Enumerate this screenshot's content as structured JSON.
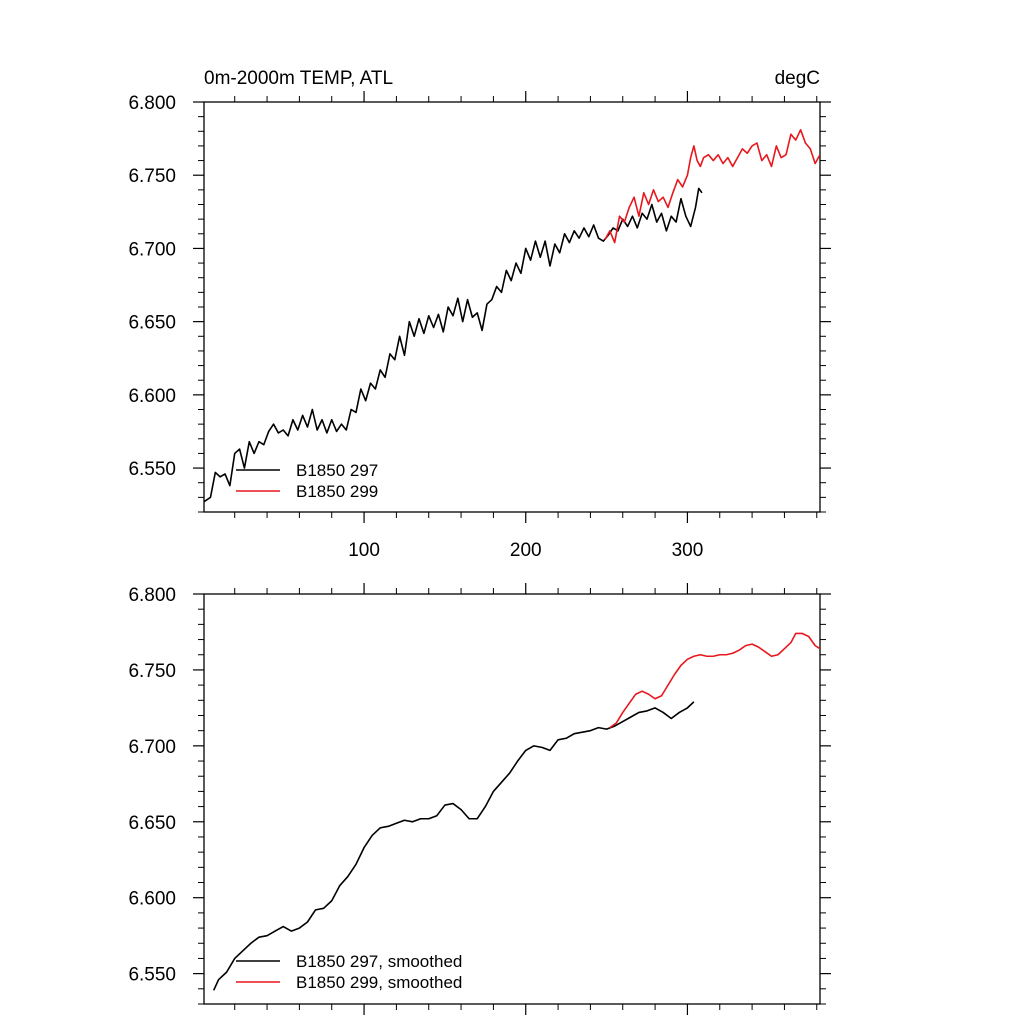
{
  "figure": {
    "top_left_title": "0m-2000m TEMP, ATL",
    "top_right_title": "degC"
  },
  "chart_data": [
    {
      "type": "line",
      "xlim": [
        1,
        382
      ],
      "ylim": [
        6.52,
        6.8
      ],
      "x_ticks": [
        100,
        200,
        300
      ],
      "x_tick_labels": [
        "100",
        "200",
        "300"
      ],
      "y_ticks": [
        6.55,
        6.6,
        6.65,
        6.7,
        6.75,
        6.8
      ],
      "y_tick_labels": [
        "6.550",
        "6.600",
        "6.650",
        "6.700",
        "6.750",
        "6.800"
      ],
      "grid": false,
      "legend_placement": "bottom-left",
      "series": [
        {
          "name": "B1850 297",
          "color": "#000000",
          "points": [
            [
              1,
              6.527
            ],
            [
              5,
              6.53
            ],
            [
              8,
              6.547
            ],
            [
              11,
              6.544
            ],
            [
              14,
              6.546
            ],
            [
              17,
              6.538
            ],
            [
              20,
              6.56
            ],
            [
              23,
              6.563
            ],
            [
              26,
              6.55
            ],
            [
              29,
              6.568
            ],
            [
              32,
              6.56
            ],
            [
              35,
              6.568
            ],
            [
              38,
              6.566
            ],
            [
              41,
              6.575
            ],
            [
              44,
              6.58
            ],
            [
              47,
              6.574
            ],
            [
              50,
              6.576
            ],
            [
              53,
              6.572
            ],
            [
              56,
              6.583
            ],
            [
              59,
              6.576
            ],
            [
              62,
              6.586
            ],
            [
              65,
              6.578
            ],
            [
              68,
              6.59
            ],
            [
              71,
              6.576
            ],
            [
              74,
              6.583
            ],
            [
              77,
              6.574
            ],
            [
              80,
              6.583
            ],
            [
              83,
              6.575
            ],
            [
              86,
              6.58
            ],
            [
              89,
              6.576
            ],
            [
              92,
              6.59
            ],
            [
              95,
              6.588
            ],
            [
              98,
              6.604
            ],
            [
              101,
              6.596
            ],
            [
              104,
              6.608
            ],
            [
              107,
              6.604
            ],
            [
              110,
              6.617
            ],
            [
              113,
              6.612
            ],
            [
              116,
              6.628
            ],
            [
              119,
              6.624
            ],
            [
              122,
              6.64
            ],
            [
              125,
              6.627
            ],
            [
              128,
              6.65
            ],
            [
              131,
              6.64
            ],
            [
              134,
              6.652
            ],
            [
              137,
              6.642
            ],
            [
              140,
              6.654
            ],
            [
              143,
              6.646
            ],
            [
              146,
              6.655
            ],
            [
              149,
              6.643
            ],
            [
              152,
              6.66
            ],
            [
              155,
              6.654
            ],
            [
              158,
              6.666
            ],
            [
              161,
              6.65
            ],
            [
              164,
              6.665
            ],
            [
              167,
              6.653
            ],
            [
              170,
              6.656
            ],
            [
              173,
              6.644
            ],
            [
              176,
              6.662
            ],
            [
              179,
              6.665
            ],
            [
              182,
              6.674
            ],
            [
              185,
              6.67
            ],
            [
              188,
              6.685
            ],
            [
              191,
              6.678
            ],
            [
              194,
              6.69
            ],
            [
              197,
              6.683
            ],
            [
              200,
              6.7
            ],
            [
              203,
              6.692
            ],
            [
              206,
              6.705
            ],
            [
              209,
              6.694
            ],
            [
              212,
              6.705
            ],
            [
              215,
              6.688
            ],
            [
              218,
              6.703
            ],
            [
              221,
              6.697
            ],
            [
              224,
              6.71
            ],
            [
              227,
              6.704
            ],
            [
              230,
              6.712
            ],
            [
              233,
              6.707
            ],
            [
              236,
              6.714
            ],
            [
              239,
              6.708
            ],
            [
              242,
              6.716
            ],
            [
              245,
              6.707
            ],
            [
              248,
              6.705
            ],
            [
              251,
              6.709
            ],
            [
              254,
              6.714
            ],
            [
              257,
              6.712
            ],
            [
              260,
              6.72
            ],
            [
              263,
              6.715
            ],
            [
              266,
              6.722
            ],
            [
              269,
              6.714
            ],
            [
              272,
              6.724
            ],
            [
              275,
              6.72
            ],
            [
              278,
              6.73
            ],
            [
              281,
              6.718
            ],
            [
              284,
              6.724
            ],
            [
              287,
              6.712
            ],
            [
              290,
              6.722
            ],
            [
              293,
              6.718
            ],
            [
              296,
              6.734
            ],
            [
              299,
              6.722
            ],
            [
              302,
              6.715
            ],
            [
              305,
              6.728
            ],
            [
              307,
              6.741
            ],
            [
              309,
              6.738
            ]
          ]
        },
        {
          "name": "B1850 299",
          "color": "#e8171e",
          "points": [
            [
              249,
              6.706
            ],
            [
              252,
              6.712
            ],
            [
              255,
              6.704
            ],
            [
              258,
              6.722
            ],
            [
              261,
              6.718
            ],
            [
              264,
              6.728
            ],
            [
              267,
              6.735
            ],
            [
              270,
              6.722
            ],
            [
              273,
              6.738
            ],
            [
              276,
              6.73
            ],
            [
              279,
              6.74
            ],
            [
              282,
              6.732
            ],
            [
              285,
              6.735
            ],
            [
              288,
              6.728
            ],
            [
              291,
              6.738
            ],
            [
              294,
              6.747
            ],
            [
              297,
              6.742
            ],
            [
              300,
              6.75
            ],
            [
              302,
              6.762
            ],
            [
              304,
              6.77
            ],
            [
              306,
              6.76
            ],
            [
              308,
              6.756
            ],
            [
              310,
              6.762
            ],
            [
              313,
              6.764
            ],
            [
              316,
              6.76
            ],
            [
              319,
              6.764
            ],
            [
              322,
              6.758
            ],
            [
              325,
              6.762
            ],
            [
              328,
              6.756
            ],
            [
              331,
              6.762
            ],
            [
              334,
              6.768
            ],
            [
              337,
              6.765
            ],
            [
              340,
              6.77
            ],
            [
              343,
              6.772
            ],
            [
              346,
              6.76
            ],
            [
              349,
              6.764
            ],
            [
              352,
              6.756
            ],
            [
              355,
              6.77
            ],
            [
              358,
              6.762
            ],
            [
              361,
              6.764
            ],
            [
              364,
              6.778
            ],
            [
              367,
              6.774
            ],
            [
              370,
              6.781
            ],
            [
              373,
              6.772
            ],
            [
              376,
              6.768
            ],
            [
              379,
              6.758
            ],
            [
              382,
              6.764
            ]
          ]
        }
      ]
    },
    {
      "type": "line",
      "xlim": [
        1,
        382
      ],
      "ylim": [
        6.53,
        6.8
      ],
      "x_ticks": [
        100,
        200,
        300
      ],
      "x_tick_labels": [],
      "y_ticks": [
        6.55,
        6.6,
        6.65,
        6.7,
        6.75,
        6.8
      ],
      "y_tick_labels": [
        "6.550",
        "6.600",
        "6.650",
        "6.700",
        "6.750",
        "6.800"
      ],
      "grid": false,
      "legend_placement": "bottom-left",
      "series": [
        {
          "name": "B1850 297, smoothed",
          "color": "#000000",
          "points": [
            [
              7,
              6.539
            ],
            [
              10,
              6.546
            ],
            [
              15,
              6.551
            ],
            [
              20,
              6.56
            ],
            [
              25,
              6.565
            ],
            [
              30,
              6.57
            ],
            [
              35,
              6.574
            ],
            [
              40,
              6.575
            ],
            [
              45,
              6.578
            ],
            [
              50,
              6.581
            ],
            [
              55,
              6.578
            ],
            [
              60,
              6.58
            ],
            [
              65,
              6.584
            ],
            [
              70,
              6.592
            ],
            [
              75,
              6.593
            ],
            [
              80,
              6.598
            ],
            [
              85,
              6.608
            ],
            [
              90,
              6.614
            ],
            [
              95,
              6.622
            ],
            [
              100,
              6.633
            ],
            [
              105,
              6.641
            ],
            [
              110,
              6.646
            ],
            [
              115,
              6.647
            ],
            [
              120,
              6.649
            ],
            [
              125,
              6.651
            ],
            [
              130,
              6.65
            ],
            [
              135,
              6.652
            ],
            [
              140,
              6.652
            ],
            [
              145,
              6.654
            ],
            [
              150,
              6.661
            ],
            [
              155,
              6.662
            ],
            [
              160,
              6.658
            ],
            [
              165,
              6.652
            ],
            [
              170,
              6.652
            ],
            [
              175,
              6.66
            ],
            [
              180,
              6.67
            ],
            [
              185,
              6.676
            ],
            [
              190,
              6.682
            ],
            [
              195,
              6.69
            ],
            [
              200,
              6.697
            ],
            [
              205,
              6.7
            ],
            [
              210,
              6.699
            ],
            [
              215,
              6.697
            ],
            [
              220,
              6.704
            ],
            [
              225,
              6.705
            ],
            [
              230,
              6.708
            ],
            [
              235,
              6.709
            ],
            [
              240,
              6.71
            ],
            [
              245,
              6.712
            ],
            [
              250,
              6.711
            ],
            [
              255,
              6.713
            ],
            [
              260,
              6.716
            ],
            [
              265,
              6.719
            ],
            [
              270,
              6.722
            ],
            [
              275,
              6.723
            ],
            [
              280,
              6.725
            ],
            [
              285,
              6.722
            ],
            [
              290,
              6.718
            ],
            [
              295,
              6.722
            ],
            [
              300,
              6.725
            ],
            [
              304,
              6.729
            ]
          ]
        },
        {
          "name": "B1850 299, smoothed",
          "color": "#e8171e",
          "points": [
            [
              252,
              6.712
            ],
            [
              256,
              6.715
            ],
            [
              260,
              6.722
            ],
            [
              264,
              6.728
            ],
            [
              268,
              6.734
            ],
            [
              272,
              6.736
            ],
            [
              276,
              6.734
            ],
            [
              280,
              6.731
            ],
            [
              284,
              6.733
            ],
            [
              288,
              6.74
            ],
            [
              292,
              6.747
            ],
            [
              296,
              6.753
            ],
            [
              300,
              6.757
            ],
            [
              304,
              6.759
            ],
            [
              308,
              6.76
            ],
            [
              312,
              6.759
            ],
            [
              316,
              6.759
            ],
            [
              320,
              6.76
            ],
            [
              324,
              6.76
            ],
            [
              328,
              6.761
            ],
            [
              332,
              6.763
            ],
            [
              336,
              6.766
            ],
            [
              340,
              6.767
            ],
            [
              344,
              6.765
            ],
            [
              348,
              6.762
            ],
            [
              352,
              6.759
            ],
            [
              356,
              6.76
            ],
            [
              360,
              6.764
            ],
            [
              364,
              6.768
            ],
            [
              367,
              6.774
            ],
            [
              371,
              6.774
            ],
            [
              375,
              6.772
            ],
            [
              379,
              6.766
            ],
            [
              382,
              6.764
            ]
          ]
        }
      ]
    }
  ]
}
